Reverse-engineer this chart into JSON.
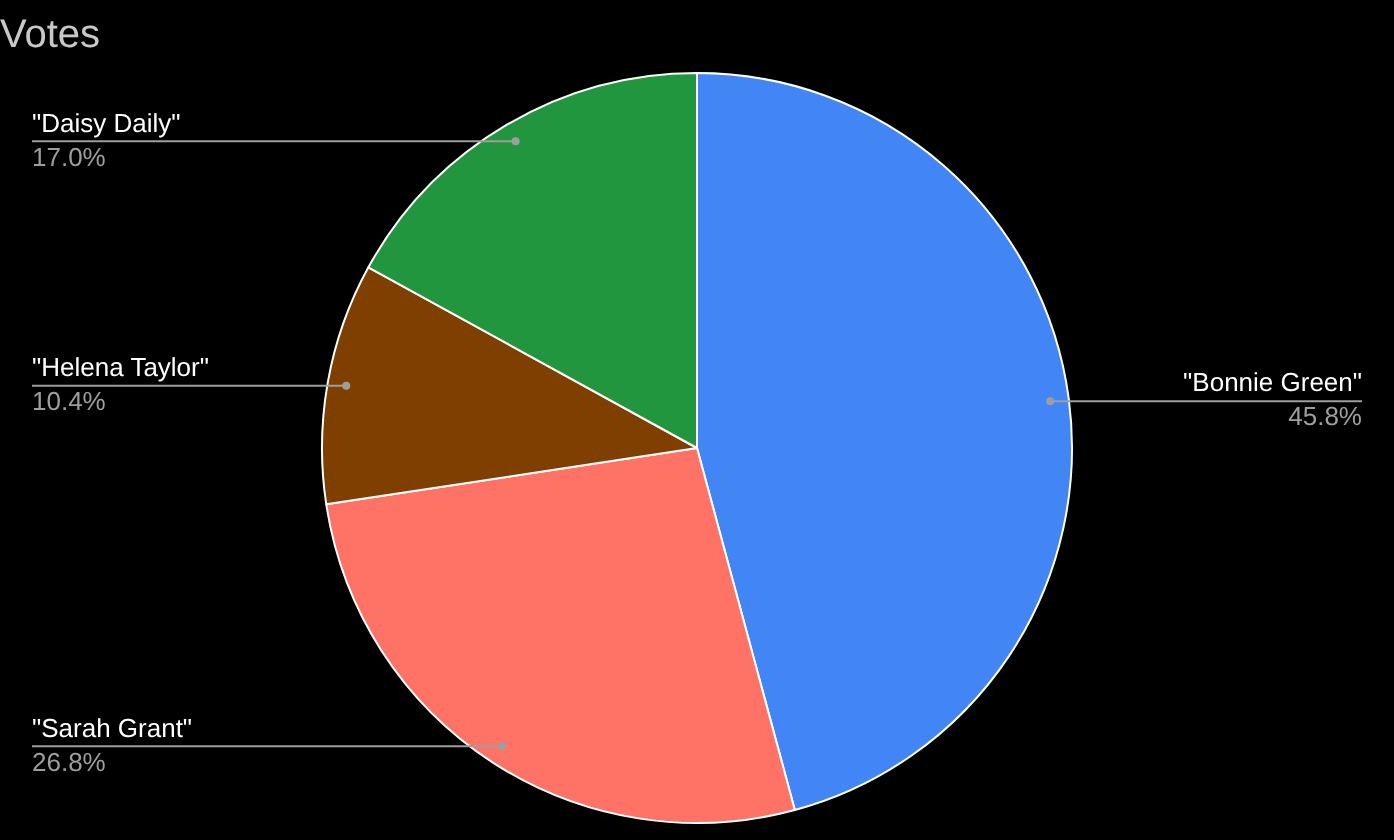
{
  "chart_data": {
    "type": "pie",
    "title": "Votes",
    "categories": [
      "\"Bonnie Green\"",
      "\"Sarah Grant\"",
      "\"Helena Taylor\"",
      "\"Daisy Daily\""
    ],
    "values": [
      45.8,
      26.8,
      10.4,
      17.0
    ],
    "colors": [
      "#4285f4",
      "#ff7366",
      "#7f3f00",
      "#22963f"
    ],
    "value_labels": [
      "45.8%",
      "26.8%",
      "10.4%",
      "17.0%"
    ]
  }
}
